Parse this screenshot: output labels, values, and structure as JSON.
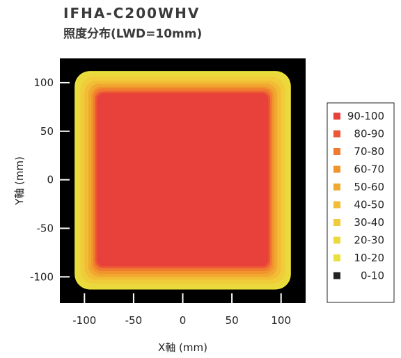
{
  "header": {
    "title": "IFHA-C200WHV",
    "subtitle": "照度分布(LWD=10mm)"
  },
  "chart_data": {
    "type": "heatmap",
    "xlabel": "X軸 (mm)",
    "ylabel": "Y軸 (mm)",
    "xlim": [
      -125,
      125
    ],
    "ylim": [
      -127,
      125
    ],
    "x_ticks": [
      -100,
      -50,
      0,
      50,
      100
    ],
    "y_ticks": [
      100,
      50,
      0,
      -50,
      -100
    ],
    "x_tick_labels": [
      "-100",
      "-50",
      "0",
      "50",
      "100"
    ],
    "y_tick_labels": [
      "100",
      "50",
      "0",
      "-50",
      "-100"
    ],
    "legend_position": "right",
    "legend": [
      {
        "label": "90-100",
        "color": "#e8403a"
      },
      {
        "label": "80-90",
        "color": "#ec5634"
      },
      {
        "label": "70-80",
        "color": "#f07a30"
      },
      {
        "label": "60-70",
        "color": "#f2942c"
      },
      {
        "label": "50-60",
        "color": "#f0a830"
      },
      {
        "label": "40-50",
        "color": "#f2bc34"
      },
      {
        "label": "30-40",
        "color": "#f0cc3a"
      },
      {
        "label": "20-30",
        "color": "#ebd83c"
      },
      {
        "label": "10-20",
        "color": "#eae03a"
      },
      {
        "label": "0-10",
        "color": "#222222"
      }
    ],
    "background_color": "#000000",
    "contours": [
      {
        "level": "10-20",
        "x": [
          -110,
          110
        ],
        "y": [
          -113,
          112
        ],
        "color": "#eae03a"
      },
      {
        "level": "20-30",
        "x": [
          -108,
          108
        ],
        "y": [
          -111,
          110
        ],
        "color": "#ebd83c"
      },
      {
        "level": "30-40",
        "x": [
          -104,
          104
        ],
        "y": [
          -107,
          106
        ],
        "color": "#f0cc3a"
      },
      {
        "level": "40-50",
        "x": [
          -100,
          100
        ],
        "y": [
          -103,
          102
        ],
        "color": "#f2bc34"
      },
      {
        "level": "50-60",
        "x": [
          -96,
          96
        ],
        "y": [
          -100,
          99
        ],
        "color": "#f0a830"
      },
      {
        "level": "60-70",
        "x": [
          -93,
          93
        ],
        "y": [
          -97,
          96
        ],
        "color": "#f2942c"
      },
      {
        "level": "70-80",
        "x": [
          -91,
          91
        ],
        "y": [
          -94,
          94
        ],
        "color": "#f07a30"
      },
      {
        "level": "80-90",
        "x": [
          -89,
          89
        ],
        "y": [
          -91,
          91
        ],
        "color": "#ec5634"
      },
      {
        "level": "90-100",
        "x": [
          -87,
          87
        ],
        "y": [
          -89,
          89
        ],
        "color": "#e8403a"
      }
    ]
  }
}
